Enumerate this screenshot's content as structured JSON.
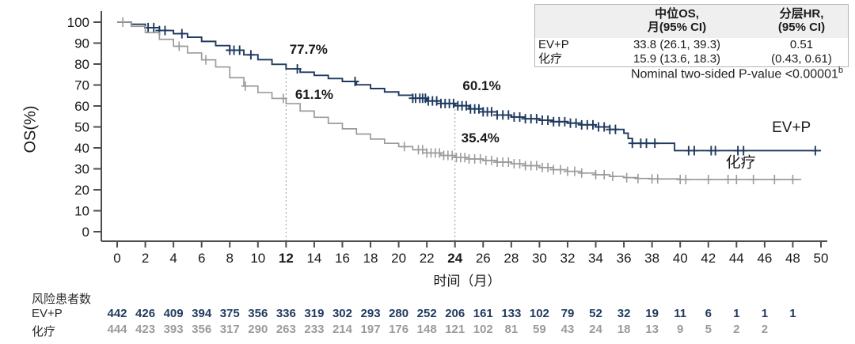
{
  "figure": {
    "ylabel": "OS(%)",
    "xlabel": "时间（月）",
    "p_note": {
      "text": "Nominal two-sided P-value <0.00001",
      "sup": "b"
    }
  },
  "colors": {
    "evp_navy": "#1f3a5f",
    "chemo_gray": "#9b9b9b",
    "axis": "#4d4d4d",
    "dotted_ref": "#999999",
    "annotation_text": "#111111",
    "chemo_label_text": "#2b2b2b",
    "table_border": "#b5b5b5",
    "table_header_bg": "#efeff0"
  },
  "stats_table": {
    "headers": [
      {
        "line1": "中位OS,",
        "line2": "月(95% CI)"
      },
      {
        "line1": "分层HR,",
        "line2": "(95% CI)"
      }
    ],
    "rows": [
      {
        "label": "EV+P",
        "median_os": "33.8 (26.1, 39.3)",
        "hr": "0.51"
      },
      {
        "label": "化疗",
        "median_os": "15.9 (13.6, 18.3)",
        "hr": "(0.43, 0.61)"
      }
    ]
  },
  "chart_data": {
    "type": "line",
    "subtype": "kaplan-meier-step",
    "title": "",
    "xlabel": "时间（月）",
    "ylabel": "OS(%)",
    "xlim": [
      0,
      50
    ],
    "ylim": [
      0,
      100
    ],
    "grid": false,
    "x_ticks": [
      0,
      2,
      4,
      6,
      8,
      10,
      12,
      14,
      16,
      18,
      20,
      22,
      24,
      26,
      28,
      30,
      32,
      34,
      36,
      38,
      40,
      42,
      44,
      46,
      48,
      50
    ],
    "x_ticks_bold": [
      12,
      24
    ],
    "y_ticks": [
      0,
      10,
      20,
      30,
      40,
      50,
      60,
      70,
      80,
      90,
      100
    ],
    "ref_lines_x": [
      12,
      24
    ],
    "annotations": [
      {
        "text": "77.7%",
        "x": 13.6,
        "y": 84.9
      },
      {
        "text": "61.1%",
        "x": 14.0,
        "y": 63.4
      },
      {
        "text": "60.1%",
        "x": 25.9,
        "y": 67.5
      },
      {
        "text": "35.4%",
        "x": 25.8,
        "y": 42.6
      }
    ],
    "series": [
      {
        "name": "EV+P",
        "color": "#1f3a5f",
        "label": "EV+P",
        "label_color": "#1f3a5f",
        "label_pos": {
          "x": 47.9,
          "y": 47.5
        },
        "landmarks": {
          "12_month": 77.7,
          "24_month": 60.1
        },
        "points": [
          [
            0,
            100
          ],
          [
            1,
            99
          ],
          [
            2,
            97.4
          ],
          [
            3,
            96
          ],
          [
            4,
            94.5
          ],
          [
            5,
            92.8
          ],
          [
            6,
            90.8
          ],
          [
            7,
            88.8
          ],
          [
            8,
            86.6
          ],
          [
            9,
            84.4
          ],
          [
            10,
            82.1
          ],
          [
            11,
            79.9
          ],
          [
            12,
            77.7
          ],
          [
            13,
            76.1
          ],
          [
            14,
            74.6
          ],
          [
            15,
            73.1
          ],
          [
            16,
            71.7
          ],
          [
            17,
            70.1
          ],
          [
            18,
            68.3
          ],
          [
            19,
            66.7
          ],
          [
            20,
            65.1
          ],
          [
            21,
            63.7
          ],
          [
            22,
            62.4
          ],
          [
            23,
            61.2
          ],
          [
            24,
            60.1
          ],
          [
            25,
            58.6
          ],
          [
            26,
            57.2
          ],
          [
            27,
            55.7
          ],
          [
            28,
            54.7
          ],
          [
            29,
            53.9
          ],
          [
            30,
            53.2
          ],
          [
            31,
            52.5
          ],
          [
            32,
            51.8
          ],
          [
            33,
            51
          ],
          [
            34,
            50
          ],
          [
            35,
            48.8
          ],
          [
            36,
            47
          ],
          [
            36.3,
            44.5
          ],
          [
            36.6,
            42.2
          ],
          [
            39.6,
            38.7
          ],
          [
            50,
            38.7
          ]
        ],
        "censors": [
          2.2,
          2.6,
          3.0,
          3.4,
          4.6,
          8.0,
          8.3,
          8.7,
          9.5,
          12.8,
          16.9,
          21.0,
          21.2,
          21.5,
          21.7,
          21.9,
          22.1,
          22.4,
          22.7,
          23.0,
          23.3,
          23.6,
          23.9,
          24.2,
          24.5,
          24.8,
          25.1,
          25.4,
          25.7,
          26.0,
          26.3,
          26.6,
          27.0,
          27.4,
          27.8,
          28.2,
          28.6,
          29.0,
          29.4,
          29.8,
          30.2,
          30.6,
          31.0,
          31.4,
          31.8,
          32.2,
          32.6,
          33.0,
          33.4,
          33.8,
          34.2,
          34.6,
          35.0,
          35.4,
          36.6,
          37.2,
          37.6,
          38.2,
          40.6,
          41.0,
          42.2,
          42.5,
          44.1,
          44.5,
          49.6
        ]
      },
      {
        "name": "化疗",
        "color": "#9b9b9b",
        "label": "化疗",
        "label_color": "#2b2b2b",
        "label_pos": {
          "x": 44.3,
          "y": 30.8
        },
        "landmarks": {
          "12_month": 61.1,
          "24_month": 35.4
        },
        "points": [
          [
            0,
            100
          ],
          [
            1,
            98
          ],
          [
            2,
            95
          ],
          [
            3,
            91.8
          ],
          [
            4,
            88.5
          ],
          [
            5,
            85.3
          ],
          [
            6,
            82
          ],
          [
            7,
            78.6
          ],
          [
            8,
            73.5
          ],
          [
            9,
            69.5
          ],
          [
            10,
            66.4
          ],
          [
            11,
            63.6
          ],
          [
            12,
            61.1
          ],
          [
            13,
            57.6
          ],
          [
            14,
            54.6
          ],
          [
            15,
            51.7
          ],
          [
            16,
            49.1
          ],
          [
            17,
            46.6
          ],
          [
            18,
            44.2
          ],
          [
            19,
            42.2
          ],
          [
            20,
            40.6
          ],
          [
            21,
            39.1
          ],
          [
            22,
            37.6
          ],
          [
            23,
            36.4
          ],
          [
            24,
            35.4
          ],
          [
            25,
            34.7
          ],
          [
            26,
            34
          ],
          [
            27,
            33.2
          ],
          [
            28,
            32.4
          ],
          [
            29,
            31.5
          ],
          [
            30,
            30.6
          ],
          [
            31,
            29.6
          ],
          [
            32,
            28.8
          ],
          [
            33,
            28
          ],
          [
            34,
            27.2
          ],
          [
            35,
            26.4
          ],
          [
            36,
            25.8
          ],
          [
            37,
            25.4
          ],
          [
            38,
            25.2
          ],
          [
            40,
            24.9
          ],
          [
            48.6,
            24.9
          ]
        ],
        "censors": [
          0.4,
          4.4,
          6.3,
          9.1,
          11.8,
          20.4,
          21.4,
          21.7,
          22.0,
          22.3,
          22.6,
          22.9,
          23.2,
          23.5,
          23.8,
          24.1,
          24.4,
          24.7,
          25.0,
          25.4,
          25.8,
          26.2,
          26.6,
          27.0,
          27.4,
          27.8,
          28.2,
          28.6,
          29.0,
          29.4,
          29.8,
          30.2,
          30.6,
          31.0,
          31.5,
          32.0,
          32.5,
          33.0,
          34.0,
          34.6,
          35.2,
          36.2,
          37.0,
          38.0,
          38.4,
          40.0,
          40.4,
          42.0,
          43.4,
          44.0,
          45.2,
          46.7,
          48.0
        ]
      }
    ]
  },
  "risk_table": {
    "title": "风险患者数",
    "time_start": 0,
    "time_step": 2,
    "rows": [
      {
        "label": "EV+P",
        "color": "#1f3a5f",
        "values": [
          442,
          426,
          409,
          394,
          375,
          356,
          336,
          319,
          302,
          293,
          280,
          252,
          206,
          161,
          133,
          102,
          79,
          52,
          32,
          19,
          11,
          6,
          1,
          1,
          1
        ]
      },
      {
        "label": "化疗",
        "color": "#9b9b9b",
        "values": [
          444,
          423,
          393,
          356,
          317,
          290,
          263,
          233,
          214,
          197,
          176,
          148,
          121,
          102,
          81,
          59,
          43,
          24,
          18,
          13,
          9,
          5,
          2,
          2
        ]
      }
    ]
  }
}
